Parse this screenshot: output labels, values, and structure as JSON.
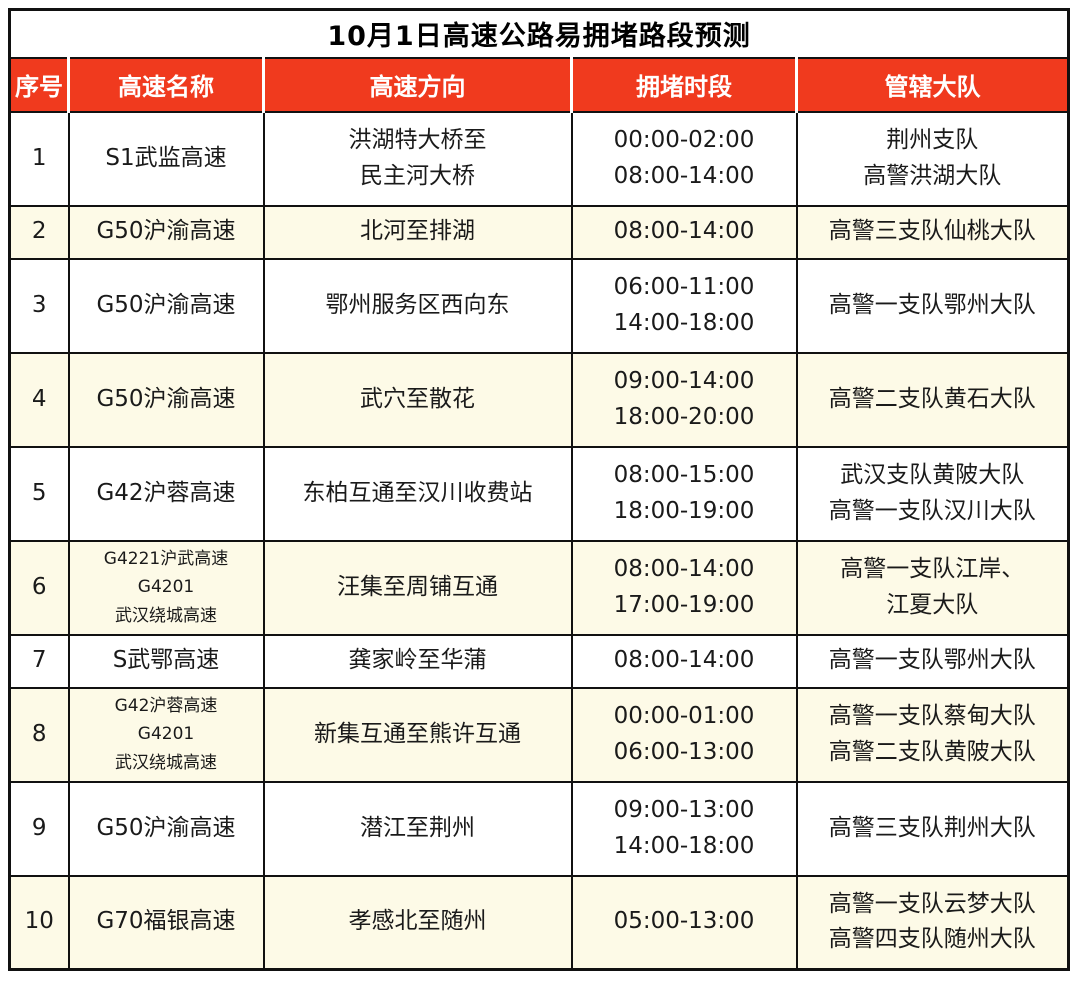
{
  "title": "10月1日高速公路易拥堵路段预测",
  "columns": [
    "序号",
    "高速名称",
    "高速方向",
    "拥堵时段",
    "管辖大队"
  ],
  "colors": {
    "header_bg": "#f03a1e",
    "header_text": "#ffffff",
    "alt_row_bg": "#fdfae7",
    "border": "#111111"
  },
  "rows": [
    {
      "no": [
        "1"
      ],
      "name": [
        "S1武监高速"
      ],
      "direction": [
        "洪湖特大桥至",
        "民主河大桥"
      ],
      "time": [
        "00:00-02:00",
        "08:00-14:00"
      ],
      "brigade": [
        "荆州支队",
        "高警洪湖大队"
      ]
    },
    {
      "no": [
        "2"
      ],
      "name": [
        "G50沪渝高速"
      ],
      "direction": [
        "北河至排湖"
      ],
      "time": [
        "08:00-14:00"
      ],
      "brigade": [
        "高警三支队仙桃大队"
      ]
    },
    {
      "no": [
        "3"
      ],
      "name": [
        "G50沪渝高速"
      ],
      "direction": [
        "鄂州服务区西向东"
      ],
      "time": [
        "06:00-11:00",
        "14:00-18:00"
      ],
      "brigade": [
        "高警一支队鄂州大队"
      ]
    },
    {
      "no": [
        "4"
      ],
      "name": [
        "G50沪渝高速"
      ],
      "direction": [
        "武穴至散花"
      ],
      "time": [
        "09:00-14:00",
        "18:00-20:00"
      ],
      "brigade": [
        "高警二支队黄石大队"
      ]
    },
    {
      "no": [
        "5"
      ],
      "name": [
        "G42沪蓉高速"
      ],
      "direction": [
        "东柏互通至汉川收费站"
      ],
      "time": [
        "08:00-15:00",
        "18:00-19:00"
      ],
      "brigade": [
        "武汉支队黄陂大队",
        "高警一支队汉川大队"
      ]
    },
    {
      "no": [
        "6"
      ],
      "name": [
        "G4221沪武高速",
        "G4201",
        "武汉绕城高速"
      ],
      "direction": [
        "汪集至周铺互通"
      ],
      "time": [
        "08:00-14:00",
        "17:00-19:00"
      ],
      "brigade": [
        "高警一支队江岸、",
        "江夏大队"
      ]
    },
    {
      "no": [
        "7"
      ],
      "name": [
        "S武鄂高速"
      ],
      "direction": [
        "龚家岭至华蒲"
      ],
      "time": [
        "08:00-14:00"
      ],
      "brigade": [
        "高警一支队鄂州大队"
      ]
    },
    {
      "no": [
        "8"
      ],
      "name": [
        "G42沪蓉高速",
        "G4201",
        "武汉绕城高速"
      ],
      "direction": [
        "新集互通至熊许互通"
      ],
      "time": [
        "00:00-01:00",
        "06:00-13:00"
      ],
      "brigade": [
        "高警一支队蔡甸大队",
        "高警二支队黄陂大队"
      ]
    },
    {
      "no": [
        "9"
      ],
      "name": [
        "G50沪渝高速"
      ],
      "direction": [
        "潜江至荆州"
      ],
      "time": [
        "09:00-13:00",
        "14:00-18:00"
      ],
      "brigade": [
        "高警三支队荆州大队"
      ]
    },
    {
      "no": [
        "10"
      ],
      "name": [
        "G70福银高速"
      ],
      "direction": [
        "孝感北至随州"
      ],
      "time": [
        "05:00-13:00"
      ],
      "brigade": [
        "高警一支队云梦大队",
        "高警四支队随州大队"
      ]
    }
  ]
}
